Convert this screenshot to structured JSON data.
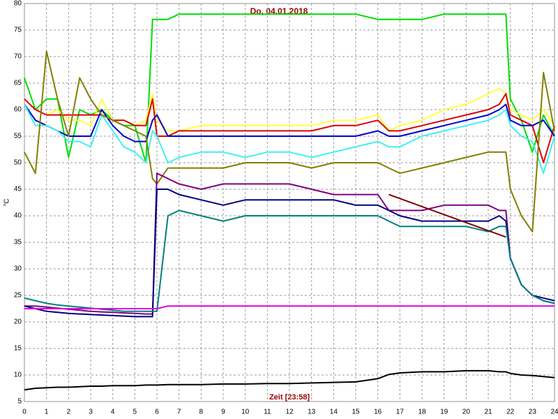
{
  "chart_data": {
    "type": "line",
    "title": "Do, 04.01.2018",
    "x_label": "Zeit [23:58]",
    "y_label": "°C",
    "x": [
      0,
      0.5,
      1,
      1.5,
      2,
      2.5,
      3,
      3.5,
      4,
      4.5,
      5,
      5.5,
      5.8,
      6,
      6.5,
      7,
      8,
      9,
      10,
      11,
      12,
      13,
      14,
      15,
      16,
      16.5,
      17,
      18,
      19,
      20,
      21,
      21.5,
      21.8,
      22,
      22.5,
      23,
      23.5,
      24
    ],
    "xlim": [
      0,
      24
    ],
    "xticks": [
      0,
      1,
      2,
      3,
      4,
      5,
      6,
      7,
      8,
      9,
      10,
      11,
      12,
      13,
      14,
      15,
      16,
      17,
      18,
      19,
      20,
      21,
      22,
      23,
      24
    ],
    "ylim": [
      5,
      80
    ],
    "yticks": [
      5,
      10,
      15,
      20,
      25,
      30,
      35,
      40,
      45,
      50,
      55,
      60,
      65,
      70,
      75,
      80
    ],
    "grid": true,
    "series": [
      {
        "color": "#00dd00",
        "values": [
          66,
          60,
          62,
          62,
          51,
          60,
          59,
          60,
          58,
          57,
          57,
          50,
          77,
          77,
          77,
          78,
          78,
          78,
          78,
          78,
          78,
          78,
          78,
          78,
          77,
          77,
          77,
          77,
          78,
          78,
          78,
          78,
          78,
          62,
          58,
          52,
          59,
          55
        ]
      },
      {
        "color": "#ffff40",
        "values": [
          62,
          60,
          59,
          60,
          58,
          58,
          57,
          62,
          58,
          58,
          57,
          58,
          63,
          58,
          56,
          56,
          57,
          57,
          57,
          57,
          57,
          57,
          58,
          58,
          59,
          56,
          57,
          58,
          60,
          61,
          63,
          64,
          63,
          60,
          59,
          58,
          60,
          57
        ]
      },
      {
        "color": "#dd0000",
        "values": [
          62,
          60,
          59,
          59,
          59,
          59,
          59,
          59,
          58,
          58,
          57,
          57,
          62,
          55,
          55,
          56,
          56,
          56,
          56,
          56,
          56,
          56,
          57,
          57,
          58,
          56,
          56,
          57,
          58,
          59,
          60,
          61,
          63,
          59,
          58,
          57,
          50,
          57
        ]
      },
      {
        "color": "#0000cc",
        "values": [
          61,
          58,
          57,
          56,
          55,
          55,
          55,
          60,
          57,
          55,
          54,
          54,
          58,
          59,
          55,
          55,
          55,
          55,
          55,
          55,
          55,
          55,
          55,
          55,
          56,
          55,
          55,
          56,
          57,
          58,
          59,
          60,
          61,
          58,
          57,
          57,
          58,
          55
        ]
      },
      {
        "color": "#40f0f0",
        "values": [
          61,
          57,
          57,
          56,
          54,
          54,
          53,
          59,
          56,
          53,
          52,
          50,
          56,
          55,
          50,
          51,
          52,
          52,
          51,
          52,
          52,
          51,
          52,
          53,
          54,
          53,
          53,
          55,
          56,
          57,
          58,
          59,
          60,
          57,
          55,
          54,
          48,
          55
        ]
      },
      {
        "color": "#808000",
        "values": [
          52,
          48,
          71,
          62,
          55,
          66,
          62,
          59,
          58,
          57,
          56,
          55,
          47,
          46,
          49,
          49,
          49,
          49,
          50,
          50,
          50,
          49,
          50,
          50,
          50,
          49,
          48,
          49,
          50,
          51,
          52,
          52,
          52,
          45,
          40,
          37,
          67,
          56
        ]
      },
      {
        "color": "#800080",
        "values": [
          23,
          23,
          22.8,
          22.6,
          22.4,
          22.2,
          22,
          21.9,
          21.8,
          21.7,
          21.6,
          21.5,
          21.5,
          48,
          47,
          46,
          45,
          46,
          46,
          46,
          46,
          45,
          44,
          44,
          44,
          41,
          41,
          41,
          42,
          42,
          42,
          41,
          41,
          32,
          27,
          25,
          24,
          23.5
        ]
      },
      {
        "color": "#000080",
        "values": [
          23,
          22.5,
          22,
          21.8,
          21.6,
          21.5,
          21.4,
          21.3,
          21.2,
          21.1,
          21,
          21,
          21,
          45,
          45,
          44,
          43,
          42,
          43,
          43,
          43,
          43,
          43,
          42,
          42,
          41,
          40,
          39,
          39,
          39,
          39,
          40,
          39,
          32,
          27,
          25,
          24.5,
          24
        ]
      },
      {
        "color": "#008080",
        "values": [
          24.5,
          24,
          23.5,
          23.2,
          23,
          22.8,
          22.6,
          22.4,
          22.2,
          22,
          22,
          22,
          22,
          22,
          40,
          41,
          40,
          39,
          40,
          40,
          40,
          40,
          40,
          40,
          40,
          39,
          38,
          38,
          38,
          38,
          37,
          38,
          38,
          32,
          27,
          25,
          24,
          23.5
        ]
      },
      {
        "color": "#e000e0",
        "values": [
          22.5,
          22.5,
          22.5,
          22.5,
          22.5,
          22.5,
          22.5,
          22.5,
          22.5,
          22.5,
          22.5,
          22.5,
          22.5,
          22.5,
          23,
          23,
          23,
          23,
          23,
          23,
          23,
          23,
          23,
          23,
          23,
          23,
          23,
          23,
          23,
          23,
          23,
          23,
          23,
          23,
          23,
          23,
          23,
          23
        ]
      },
      {
        "color": "#000000",
        "values": [
          7.2,
          7.5,
          7.6,
          7.7,
          7.7,
          7.8,
          7.9,
          7.9,
          8,
          8,
          8,
          8.1,
          8.1,
          8.1,
          8.2,
          8.2,
          8.2,
          8.3,
          8.3,
          8.4,
          8.4,
          8.5,
          8.6,
          8.7,
          9.3,
          10.1,
          10.4,
          10.6,
          10.6,
          10.8,
          10.8,
          10.6,
          10.6,
          10.3,
          10,
          9.9,
          9.7,
          9.5
        ]
      },
      {
        "color": "#800000",
        "x": [
          16.5,
          21.8
        ],
        "values": [
          44,
          36
        ]
      }
    ]
  }
}
